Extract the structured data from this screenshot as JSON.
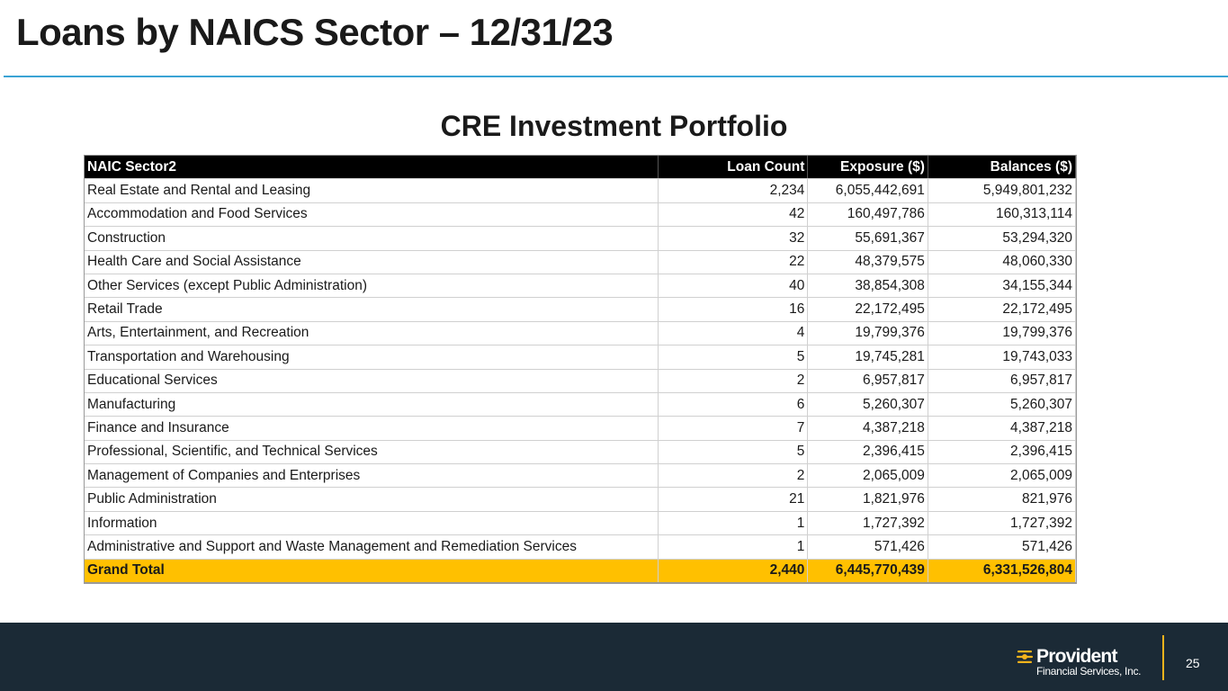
{
  "slide": {
    "title": "Loans by NAICS Sector – 12/31/23",
    "section_title": "CRE Investment Portfolio",
    "page_number": "25"
  },
  "table": {
    "headers": [
      "NAIC Sector2",
      "Loan Count",
      "Exposure ($)",
      "Balances ($)"
    ],
    "rows": [
      [
        "Real Estate and Rental and Leasing",
        "2,234",
        "6,055,442,691",
        "5,949,801,232"
      ],
      [
        "Accommodation and Food Services",
        "42",
        "160,497,786",
        "160,313,114"
      ],
      [
        "Construction",
        "32",
        "55,691,367",
        "53,294,320"
      ],
      [
        "Health Care and Social Assistance",
        "22",
        "48,379,575",
        "48,060,330"
      ],
      [
        "Other Services (except Public Administration)",
        "40",
        "38,854,308",
        "34,155,344"
      ],
      [
        "Retail Trade",
        "16",
        "22,172,495",
        "22,172,495"
      ],
      [
        "Arts, Entertainment, and Recreation",
        "4",
        "19,799,376",
        "19,799,376"
      ],
      [
        "Transportation and Warehousing",
        "5",
        "19,745,281",
        "19,743,033"
      ],
      [
        "Educational Services",
        "2",
        "6,957,817",
        "6,957,817"
      ],
      [
        "Manufacturing",
        "6",
        "5,260,307",
        "5,260,307"
      ],
      [
        "Finance and Insurance",
        "7",
        "4,387,218",
        "4,387,218"
      ],
      [
        "Professional, Scientific, and Technical Services",
        "5",
        "2,396,415",
        "2,396,415"
      ],
      [
        "Management of Companies and Enterprises",
        "2",
        "2,065,009",
        "2,065,009"
      ],
      [
        "Public Administration",
        "21",
        "1,821,976",
        "821,976"
      ],
      [
        "Information",
        "1",
        "1,727,392",
        "1,727,392"
      ],
      [
        "Administrative and Support and Waste Management and Remediation Services",
        "1",
        "571,426",
        "571,426"
      ]
    ],
    "total": [
      "Grand Total",
      "2,440",
      "6,445,770,439",
      "6,331,526,804"
    ]
  },
  "footer": {
    "logo_name": "Provident",
    "logo_sub": "Financial Services, Inc.",
    "logo_icon": "provident-logo-icon"
  },
  "colors": {
    "title_rule": "#3aa3d4",
    "header_bg": "#000000",
    "total_bg": "#ffc000",
    "footer_bg": "#1b2a36",
    "accent_gold": "#f5b31c"
  }
}
